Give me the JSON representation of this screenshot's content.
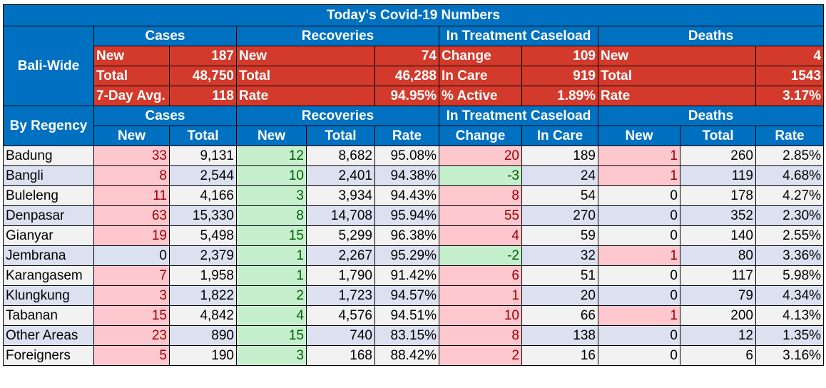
{
  "title": "Today's Covid-19 Numbers",
  "bali_wide": {
    "label": "Bali-Wide",
    "group_headers": [
      "Cases",
      "Recoveries",
      "In Treatment Caseload",
      "Deaths"
    ],
    "rows": [
      [
        [
          "New",
          "187"
        ],
        [
          "New",
          "74"
        ],
        [
          "Change",
          "109"
        ],
        [
          "New",
          "4"
        ]
      ],
      [
        [
          "Total",
          "48,750"
        ],
        [
          "Total",
          "46,288"
        ],
        [
          "In Care",
          "919"
        ],
        [
          "Total",
          "1543"
        ]
      ],
      [
        [
          "7-Day Avg.",
          "118"
        ],
        [
          "Rate",
          "94.95%"
        ],
        [
          "% Active",
          "1.89%"
        ],
        [
          "Rate",
          "3.17%"
        ]
      ]
    ]
  },
  "by_regency": {
    "label": "By Regency",
    "group_headers": [
      "Cases",
      "Recoveries",
      "In Treatment Caseload",
      "Deaths"
    ],
    "sub_headers": [
      "New",
      "Total",
      "New",
      "Total",
      "Rate",
      "Change",
      "In Care",
      "New",
      "Total",
      "Rate"
    ],
    "rows": [
      {
        "name": "Badung",
        "cases_new": "33",
        "cases_total": "9,131",
        "rec_new": "12",
        "rec_total": "8,682",
        "rec_rate": "95.08%",
        "tr_change": "20",
        "tr_care": "189",
        "d_new": "1",
        "d_total": "260",
        "d_rate": "2.85%",
        "hl": {
          "cases_new": "pink",
          "rec_new": "green",
          "tr_change": "pink",
          "d_new": "pink"
        }
      },
      {
        "name": "Bangli",
        "cases_new": "8",
        "cases_total": "2,544",
        "rec_new": "10",
        "rec_total": "2,401",
        "rec_rate": "94.38%",
        "tr_change": "-3",
        "tr_care": "24",
        "d_new": "1",
        "d_total": "119",
        "d_rate": "4.68%",
        "hl": {
          "cases_new": "pink",
          "rec_new": "green",
          "tr_change": "green",
          "d_new": "pink"
        }
      },
      {
        "name": "Buleleng",
        "cases_new": "11",
        "cases_total": "4,166",
        "rec_new": "3",
        "rec_total": "3,934",
        "rec_rate": "94.43%",
        "tr_change": "8",
        "tr_care": "54",
        "d_new": "0",
        "d_total": "178",
        "d_rate": "4.27%",
        "hl": {
          "cases_new": "pink",
          "rec_new": "green",
          "tr_change": "pink"
        }
      },
      {
        "name": "Denpasar",
        "cases_new": "63",
        "cases_total": "15,330",
        "rec_new": "8",
        "rec_total": "14,708",
        "rec_rate": "95.94%",
        "tr_change": "55",
        "tr_care": "270",
        "d_new": "0",
        "d_total": "352",
        "d_rate": "2.30%",
        "hl": {
          "cases_new": "pink",
          "rec_new": "green",
          "tr_change": "pink"
        }
      },
      {
        "name": "Gianyar",
        "cases_new": "19",
        "cases_total": "5,498",
        "rec_new": "15",
        "rec_total": "5,299",
        "rec_rate": "96.38%",
        "tr_change": "4",
        "tr_care": "59",
        "d_new": "0",
        "d_total": "140",
        "d_rate": "2.55%",
        "hl": {
          "cases_new": "pink",
          "rec_new": "green",
          "tr_change": "pink"
        }
      },
      {
        "name": "Jembrana",
        "cases_new": "0",
        "cases_total": "2,379",
        "rec_new": "1",
        "rec_total": "2,267",
        "rec_rate": "95.29%",
        "tr_change": "-2",
        "tr_care": "32",
        "d_new": "1",
        "d_total": "80",
        "d_rate": "3.36%",
        "hl": {
          "rec_new": "green",
          "tr_change": "green",
          "d_new": "pink"
        }
      },
      {
        "name": "Karangasem",
        "cases_new": "7",
        "cases_total": "1,958",
        "rec_new": "1",
        "rec_total": "1,790",
        "rec_rate": "91.42%",
        "tr_change": "6",
        "tr_care": "51",
        "d_new": "0",
        "d_total": "117",
        "d_rate": "5.98%",
        "hl": {
          "cases_new": "pink",
          "rec_new": "green",
          "tr_change": "pink"
        }
      },
      {
        "name": "Klungkung",
        "cases_new": "3",
        "cases_total": "1,822",
        "rec_new": "2",
        "rec_total": "1,723",
        "rec_rate": "94.57%",
        "tr_change": "1",
        "tr_care": "20",
        "d_new": "0",
        "d_total": "79",
        "d_rate": "4.34%",
        "hl": {
          "cases_new": "pink",
          "rec_new": "green",
          "tr_change": "pink"
        }
      },
      {
        "name": "Tabanan",
        "cases_new": "15",
        "cases_total": "4,842",
        "rec_new": "4",
        "rec_total": "4,576",
        "rec_rate": "94.51%",
        "tr_change": "10",
        "tr_care": "66",
        "d_new": "1",
        "d_total": "200",
        "d_rate": "4.13%",
        "hl": {
          "cases_new": "pink",
          "rec_new": "green",
          "tr_change": "pink",
          "d_new": "pink"
        }
      },
      {
        "name": "Other Areas",
        "cases_new": "23",
        "cases_total": "890",
        "rec_new": "15",
        "rec_total": "740",
        "rec_rate": "83.15%",
        "tr_change": "8",
        "tr_care": "138",
        "d_new": "0",
        "d_total": "12",
        "d_rate": "1.35%",
        "hl": {
          "cases_new": "pink",
          "rec_new": "green",
          "tr_change": "pink"
        }
      },
      {
        "name": "Foreigners",
        "cases_new": "5",
        "cases_total": "190",
        "rec_new": "3",
        "rec_total": "168",
        "rec_rate": "88.42%",
        "tr_change": "2",
        "tr_care": "16",
        "d_new": "0",
        "d_total": "6",
        "d_rate": "3.16%",
        "hl": {
          "cases_new": "pink",
          "rec_new": "green",
          "tr_change": "pink"
        }
      }
    ]
  }
}
